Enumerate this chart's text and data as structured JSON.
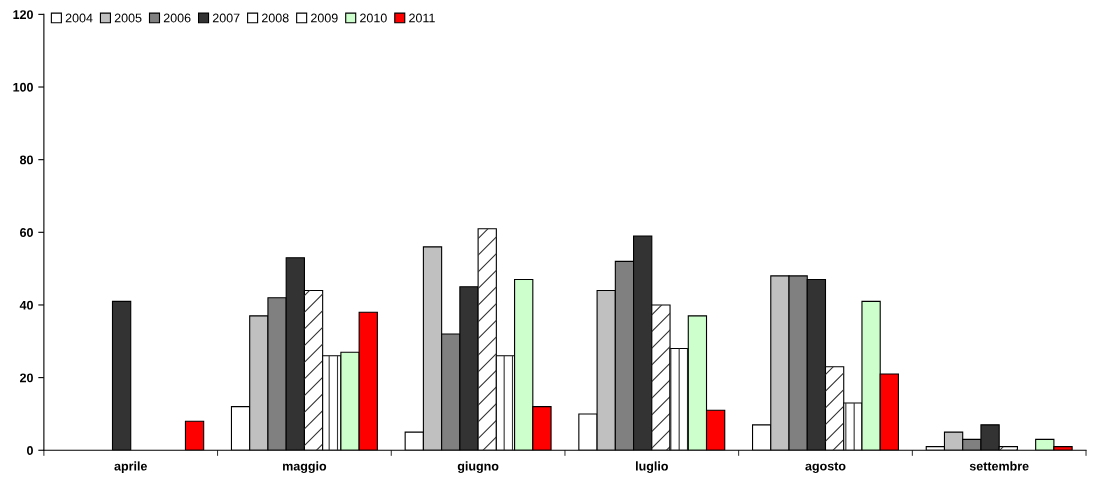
{
  "chart_data": {
    "type": "bar",
    "categories": [
      "aprile",
      "maggio",
      "giugno",
      "luglio",
      "agosto",
      "settembre"
    ],
    "series": [
      {
        "name": "2004",
        "color": "#ffffff",
        "values": [
          null,
          12,
          5,
          10,
          7,
          1
        ]
      },
      {
        "name": "2005",
        "color": "#c0c0c0",
        "values": [
          null,
          37,
          56,
          44,
          48,
          5
        ]
      },
      {
        "name": "2006",
        "color": "#808080",
        "values": [
          null,
          42,
          32,
          52,
          48,
          3
        ]
      },
      {
        "name": "2007",
        "color": "#333333",
        "values": [
          41,
          53,
          45,
          59,
          47,
          7
        ]
      },
      {
        "name": "2008",
        "color": "#ffffff",
        "values": [
          null,
          44,
          61,
          40,
          23,
          1
        ]
      },
      {
        "name": "2009",
        "color": "#ffffff",
        "values": [
          null,
          26,
          26,
          28,
          13,
          null
        ]
      },
      {
        "name": "2010",
        "color": "#ccffcc",
        "values": [
          null,
          27,
          47,
          37,
          41,
          3
        ]
      },
      {
        "name": "2011",
        "color": "#ff0000",
        "values": [
          8,
          38,
          12,
          11,
          21,
          1
        ]
      }
    ],
    "ylim": [
      0,
      120
    ],
    "yticks": [
      0,
      20,
      40,
      60,
      80,
      100,
      120
    ],
    "grid": false,
    "legend": "top left"
  }
}
